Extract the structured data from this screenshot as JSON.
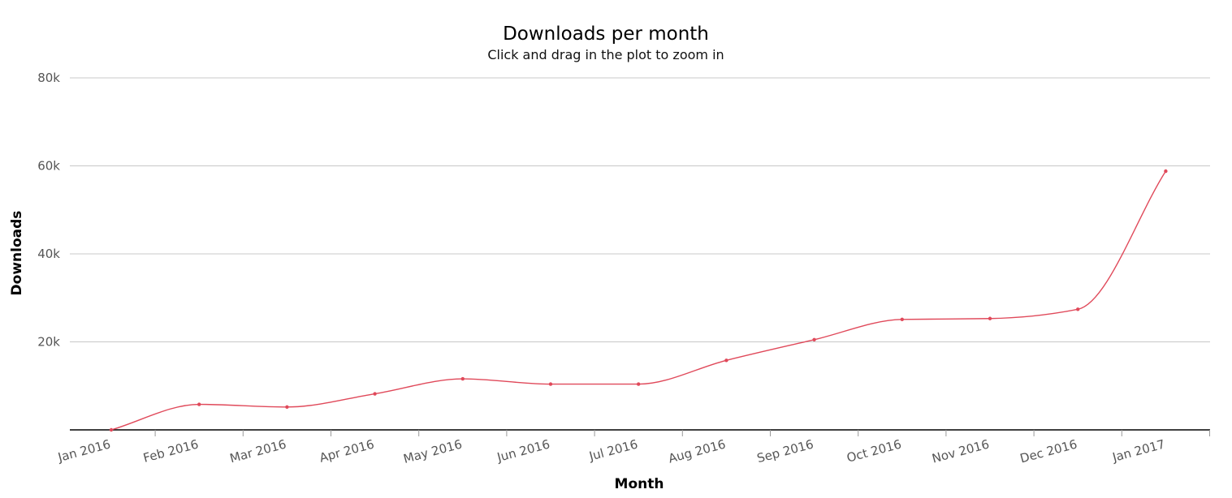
{
  "chart_data": {
    "type": "line",
    "title": "Downloads per month",
    "subtitle": "Click and drag in the plot to zoom in",
    "xlabel": "Month",
    "ylabel": "Downloads",
    "ylim": [
      0,
      80000
    ],
    "y_ticks": [
      {
        "value": 20000,
        "label": "20k"
      },
      {
        "value": 40000,
        "label": "40k"
      },
      {
        "value": 60000,
        "label": "60k"
      },
      {
        "value": 80000,
        "label": "80k"
      }
    ],
    "categories": [
      "Jan 2016",
      "Feb 2016",
      "Mar 2016",
      "Apr 2016",
      "May 2016",
      "Jun 2016",
      "Jul 2016",
      "Aug 2016",
      "Sep 2016",
      "Oct 2016",
      "Nov 2016",
      "Dec 2016",
      "Jan 2017"
    ],
    "series": [
      {
        "values": [
          0,
          5800,
          5200,
          8200,
          11600,
          10400,
          10400,
          15800,
          20500,
          25100,
          25300,
          27400,
          58800
        ]
      }
    ],
    "grid": true,
    "legend": "none",
    "colors": {
      "series": "#e0495a",
      "grid": "#c8c8c8",
      "axis": "#000000",
      "tick_label": "#555555"
    }
  }
}
